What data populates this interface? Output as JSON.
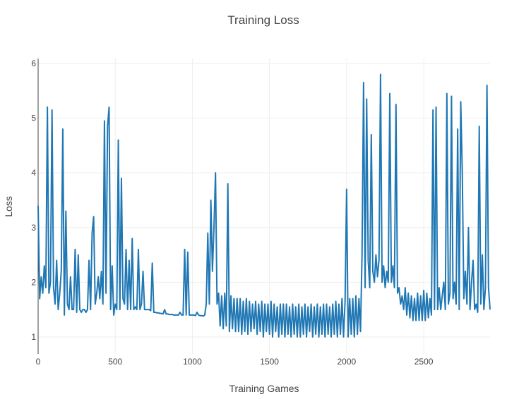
{
  "chart_data": {
    "type": "line",
    "title": "Training Loss",
    "x_label": "Training Games",
    "y_label": "Loss",
    "xlim": [
      0,
      2930
    ],
    "ylim": [
      0.69,
      6.09
    ],
    "xticks": [
      0,
      500,
      1000,
      1500,
      2000,
      2500
    ],
    "yticks": [
      1,
      2,
      3,
      4,
      5,
      6
    ],
    "grid": true,
    "series": [
      {
        "name": "Loss",
        "color": "#1f77b4",
        "x": [
          0,
          10,
          20,
          30,
          40,
          50,
          60,
          70,
          80,
          90,
          100,
          110,
          120,
          130,
          140,
          150,
          160,
          170,
          180,
          190,
          200,
          210,
          220,
          230,
          240,
          250,
          260,
          270,
          280,
          290,
          300,
          310,
          320,
          330,
          340,
          350,
          360,
          370,
          380,
          390,
          400,
          410,
          420,
          430,
          440,
          450,
          460,
          470,
          480,
          490,
          500,
          510,
          520,
          530,
          540,
          550,
          560,
          570,
          580,
          590,
          600,
          610,
          620,
          630,
          640,
          650,
          660,
          670,
          680,
          690,
          700,
          710,
          720,
          730,
          740,
          750,
          760,
          770,
          780,
          790,
          800,
          810,
          820,
          830,
          840,
          850,
          860,
          870,
          880,
          890,
          900,
          910,
          920,
          930,
          940,
          950,
          960,
          970,
          980,
          990,
          1000,
          1010,
          1020,
          1030,
          1040,
          1050,
          1060,
          1070,
          1080,
          1090,
          1100,
          1110,
          1120,
          1130,
          1140,
          1150,
          1160,
          1170,
          1180,
          1190,
          1200,
          1210,
          1220,
          1230,
          1240,
          1250,
          1260,
          1270,
          1280,
          1290,
          1300,
          1310,
          1320,
          1330,
          1340,
          1350,
          1360,
          1370,
          1380,
          1390,
          1400,
          1410,
          1420,
          1430,
          1440,
          1450,
          1460,
          1470,
          1480,
          1490,
          1500,
          1510,
          1520,
          1530,
          1540,
          1550,
          1560,
          1570,
          1580,
          1590,
          1600,
          1610,
          1620,
          1630,
          1640,
          1650,
          1660,
          1670,
          1680,
          1690,
          1700,
          1710,
          1720,
          1730,
          1740,
          1750,
          1760,
          1770,
          1780,
          1790,
          1800,
          1810,
          1820,
          1830,
          1840,
          1850,
          1860,
          1870,
          1880,
          1890,
          1900,
          1910,
          1920,
          1930,
          1940,
          1950,
          1960,
          1970,
          1980,
          1990,
          2000,
          2010,
          2020,
          2030,
          2040,
          2050,
          2060,
          2070,
          2080,
          2090,
          2100,
          2110,
          2120,
          2130,
          2140,
          2150,
          2160,
          2170,
          2180,
          2190,
          2200,
          2210,
          2220,
          2230,
          2240,
          2250,
          2260,
          2270,
          2280,
          2290,
          2300,
          2310,
          2320,
          2330,
          2340,
          2350,
          2360,
          2370,
          2380,
          2390,
          2400,
          2410,
          2420,
          2430,
          2440,
          2450,
          2460,
          2470,
          2480,
          2490,
          2500,
          2510,
          2520,
          2530,
          2540,
          2550,
          2560,
          2570,
          2580,
          2590,
          2600,
          2610,
          2620,
          2630,
          2640,
          2650,
          2660,
          2670,
          2680,
          2690,
          2700,
          2710,
          2720,
          2730,
          2740,
          2750,
          2760,
          2770,
          2780,
          2790,
          2800,
          2810,
          2820,
          2830,
          2840,
          2850,
          2860,
          2870,
          2880,
          2890,
          2900,
          2910,
          2920,
          2930
        ],
        "values": [
          3.4,
          1.7,
          2.1,
          1.8,
          2.3,
          1.9,
          5.2,
          1.8,
          2.0,
          5.15,
          1.9,
          1.6,
          2.4,
          1.5,
          1.8,
          2.2,
          4.8,
          1.4,
          3.3,
          1.6,
          1.5,
          2.1,
          1.5,
          1.5,
          2.6,
          1.45,
          2.5,
          1.5,
          1.45,
          1.5,
          1.5,
          1.45,
          1.5,
          2.4,
          1.5,
          2.9,
          3.2,
          1.6,
          1.8,
          2.1,
          1.7,
          2.2,
          1.6,
          4.95,
          1.8,
          4.85,
          5.2,
          1.5,
          2.3,
          1.4,
          1.6,
          1.5,
          4.6,
          1.5,
          3.9,
          1.7,
          1.6,
          2.6,
          1.5,
          2.4,
          1.5,
          2.8,
          1.5,
          1.55,
          1.5,
          2.6,
          1.5,
          1.6,
          2.2,
          1.5,
          1.5,
          1.5,
          1.5,
          1.48,
          2.35,
          1.45,
          1.45,
          1.44,
          1.44,
          1.43,
          1.43,
          1.42,
          1.5,
          1.42,
          1.42,
          1.41,
          1.41,
          1.41,
          1.4,
          1.4,
          1.4,
          1.4,
          1.45,
          1.4,
          1.4,
          2.6,
          1.4,
          2.55,
          1.4,
          1.4,
          1.4,
          1.4,
          1.39,
          1.45,
          1.4,
          1.39,
          1.39,
          1.38,
          1.4,
          1.6,
          2.9,
          1.6,
          3.5,
          2.2,
          3.0,
          4.0,
          1.6,
          1.8,
          1.2,
          1.75,
          1.15,
          1.8,
          1.2,
          3.8,
          1.1,
          1.75,
          1.15,
          1.7,
          1.1,
          1.7,
          1.1,
          1.7,
          1.05,
          1.65,
          1.1,
          1.7,
          1.05,
          1.65,
          1.1,
          1.6,
          1.15,
          1.65,
          1.05,
          1.6,
          1.1,
          1.65,
          1.0,
          1.6,
          1.1,
          1.6,
          1.05,
          1.65,
          1.0,
          1.6,
          1.1,
          1.55,
          1.0,
          1.6,
          1.05,
          1.6,
          1.0,
          1.6,
          1.05,
          1.55,
          1.0,
          1.6,
          1.05,
          1.55,
          1.0,
          1.6,
          1.0,
          1.55,
          1.05,
          1.6,
          1.0,
          1.55,
          1.1,
          1.6,
          1.0,
          1.55,
          1.05,
          1.6,
          1.0,
          1.55,
          1.05,
          1.6,
          1.0,
          1.6,
          1.05,
          1.55,
          1.0,
          1.6,
          1.05,
          1.65,
          1.0,
          1.6,
          1.05,
          1.7,
          1.0,
          1.65,
          3.7,
          1.0,
          1.7,
          1.05,
          1.7,
          1.0,
          1.75,
          1.05,
          1.7,
          1.1,
          2.5,
          5.65,
          1.9,
          5.35,
          2.4,
          1.9,
          4.7,
          2.2,
          2.0,
          2.5,
          2.1,
          2.4,
          5.8,
          2.0,
          2.3,
          1.9,
          2.2,
          2.0,
          5.45,
          2.0,
          2.3,
          1.9,
          5.25,
          1.8,
          1.9,
          1.6,
          1.75,
          1.5,
          1.9,
          1.4,
          1.8,
          1.35,
          1.75,
          1.3,
          1.7,
          1.3,
          1.8,
          1.3,
          1.75,
          1.3,
          1.85,
          1.3,
          1.8,
          1.35,
          1.7,
          1.4,
          5.15,
          1.5,
          5.2,
          1.5,
          1.9,
          1.5,
          1.75,
          2.0,
          1.5,
          5.45,
          1.6,
          1.8,
          5.4,
          1.7,
          2.0,
          1.6,
          4.8,
          1.5,
          5.3,
          4.0,
          1.7,
          2.2,
          1.6,
          3.0,
          1.5,
          2.0,
          2.4,
          1.5,
          1.6,
          1.45,
          4.85,
          1.6,
          2.5,
          1.5,
          1.9,
          5.6,
          1.9,
          1.5
        ]
      }
    ]
  }
}
